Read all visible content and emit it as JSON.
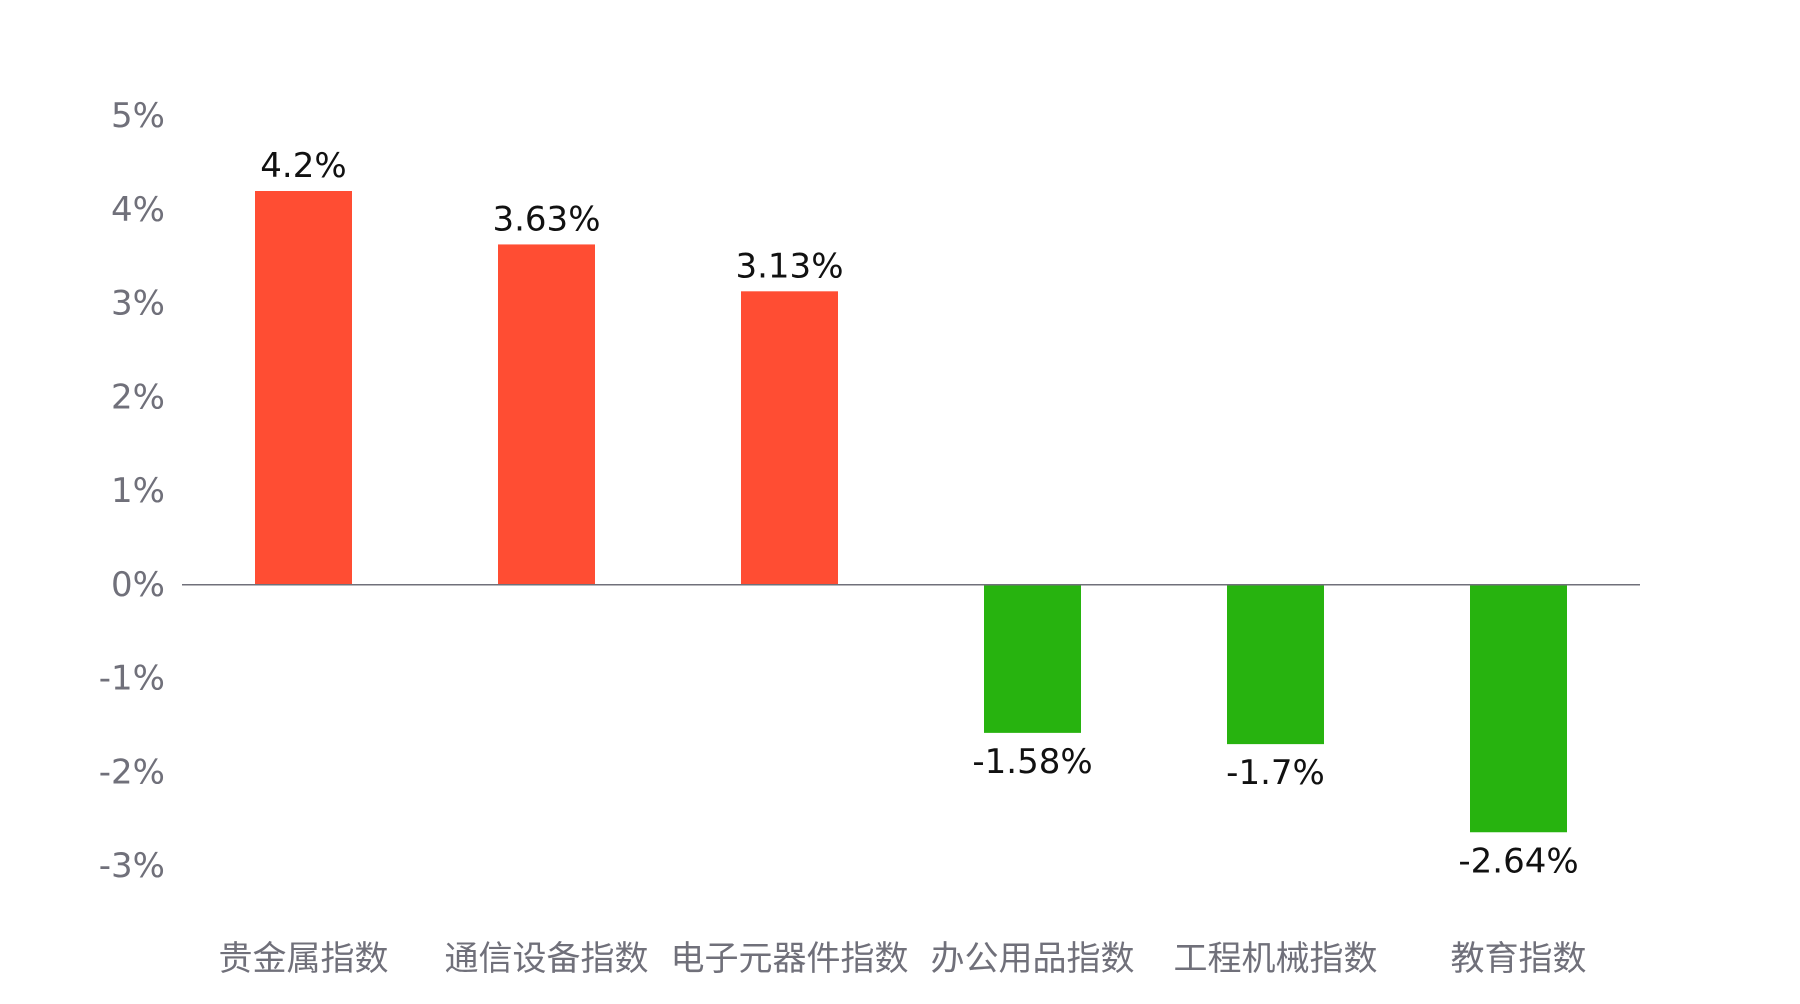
{
  "chart_data": {
    "type": "bar",
    "title": "",
    "xlabel": "",
    "ylabel": "",
    "categories": [
      "贵金属指数",
      "通信设备指数",
      "电子元器件指数",
      "办公用品指数",
      "工程机械指数",
      "教育指数"
    ],
    "values": [
      4.2,
      3.63,
      3.13,
      -1.58,
      -1.7,
      -2.64
    ],
    "data_labels": [
      "4.2%",
      "3.63%",
      "3.13%",
      "-1.58%",
      "-1.7%",
      "-2.64%"
    ],
    "ylim": [
      -3,
      5
    ],
    "yticks": [
      5,
      4,
      3,
      2,
      1,
      0,
      -1,
      -2,
      -3
    ],
    "ytick_labels": [
      "5%",
      "4%",
      "3%",
      "2%",
      "1%",
      "0%",
      "-1%",
      "-2%",
      "-3%"
    ],
    "grid": false,
    "legend": "none",
    "colors": {
      "positive": "#ff4d33",
      "negative": "#27b30f",
      "axis": "#70707a",
      "tick_text": "#70707a",
      "label_text": "#111111"
    }
  }
}
